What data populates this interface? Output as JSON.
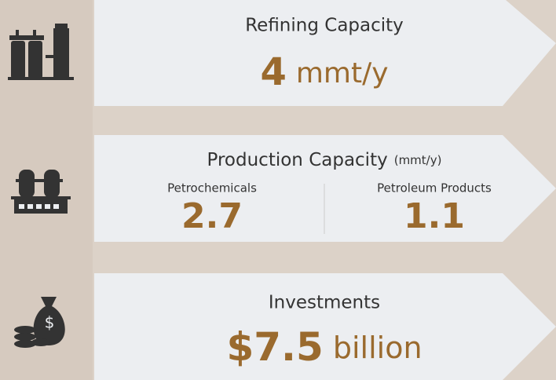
{
  "rows": [
    {
      "title": "Refining Capacity",
      "value": "4",
      "unit": "mmt/y"
    },
    {
      "title": "Production Capacity",
      "unit": "(mmt/y)",
      "items": [
        {
          "label": "Petrochemicals",
          "value": "2.7"
        },
        {
          "label": "Petroleum Products",
          "value": "1.1"
        }
      ]
    },
    {
      "title": "Investments",
      "value": "$7.5",
      "unit": "billion"
    }
  ]
}
